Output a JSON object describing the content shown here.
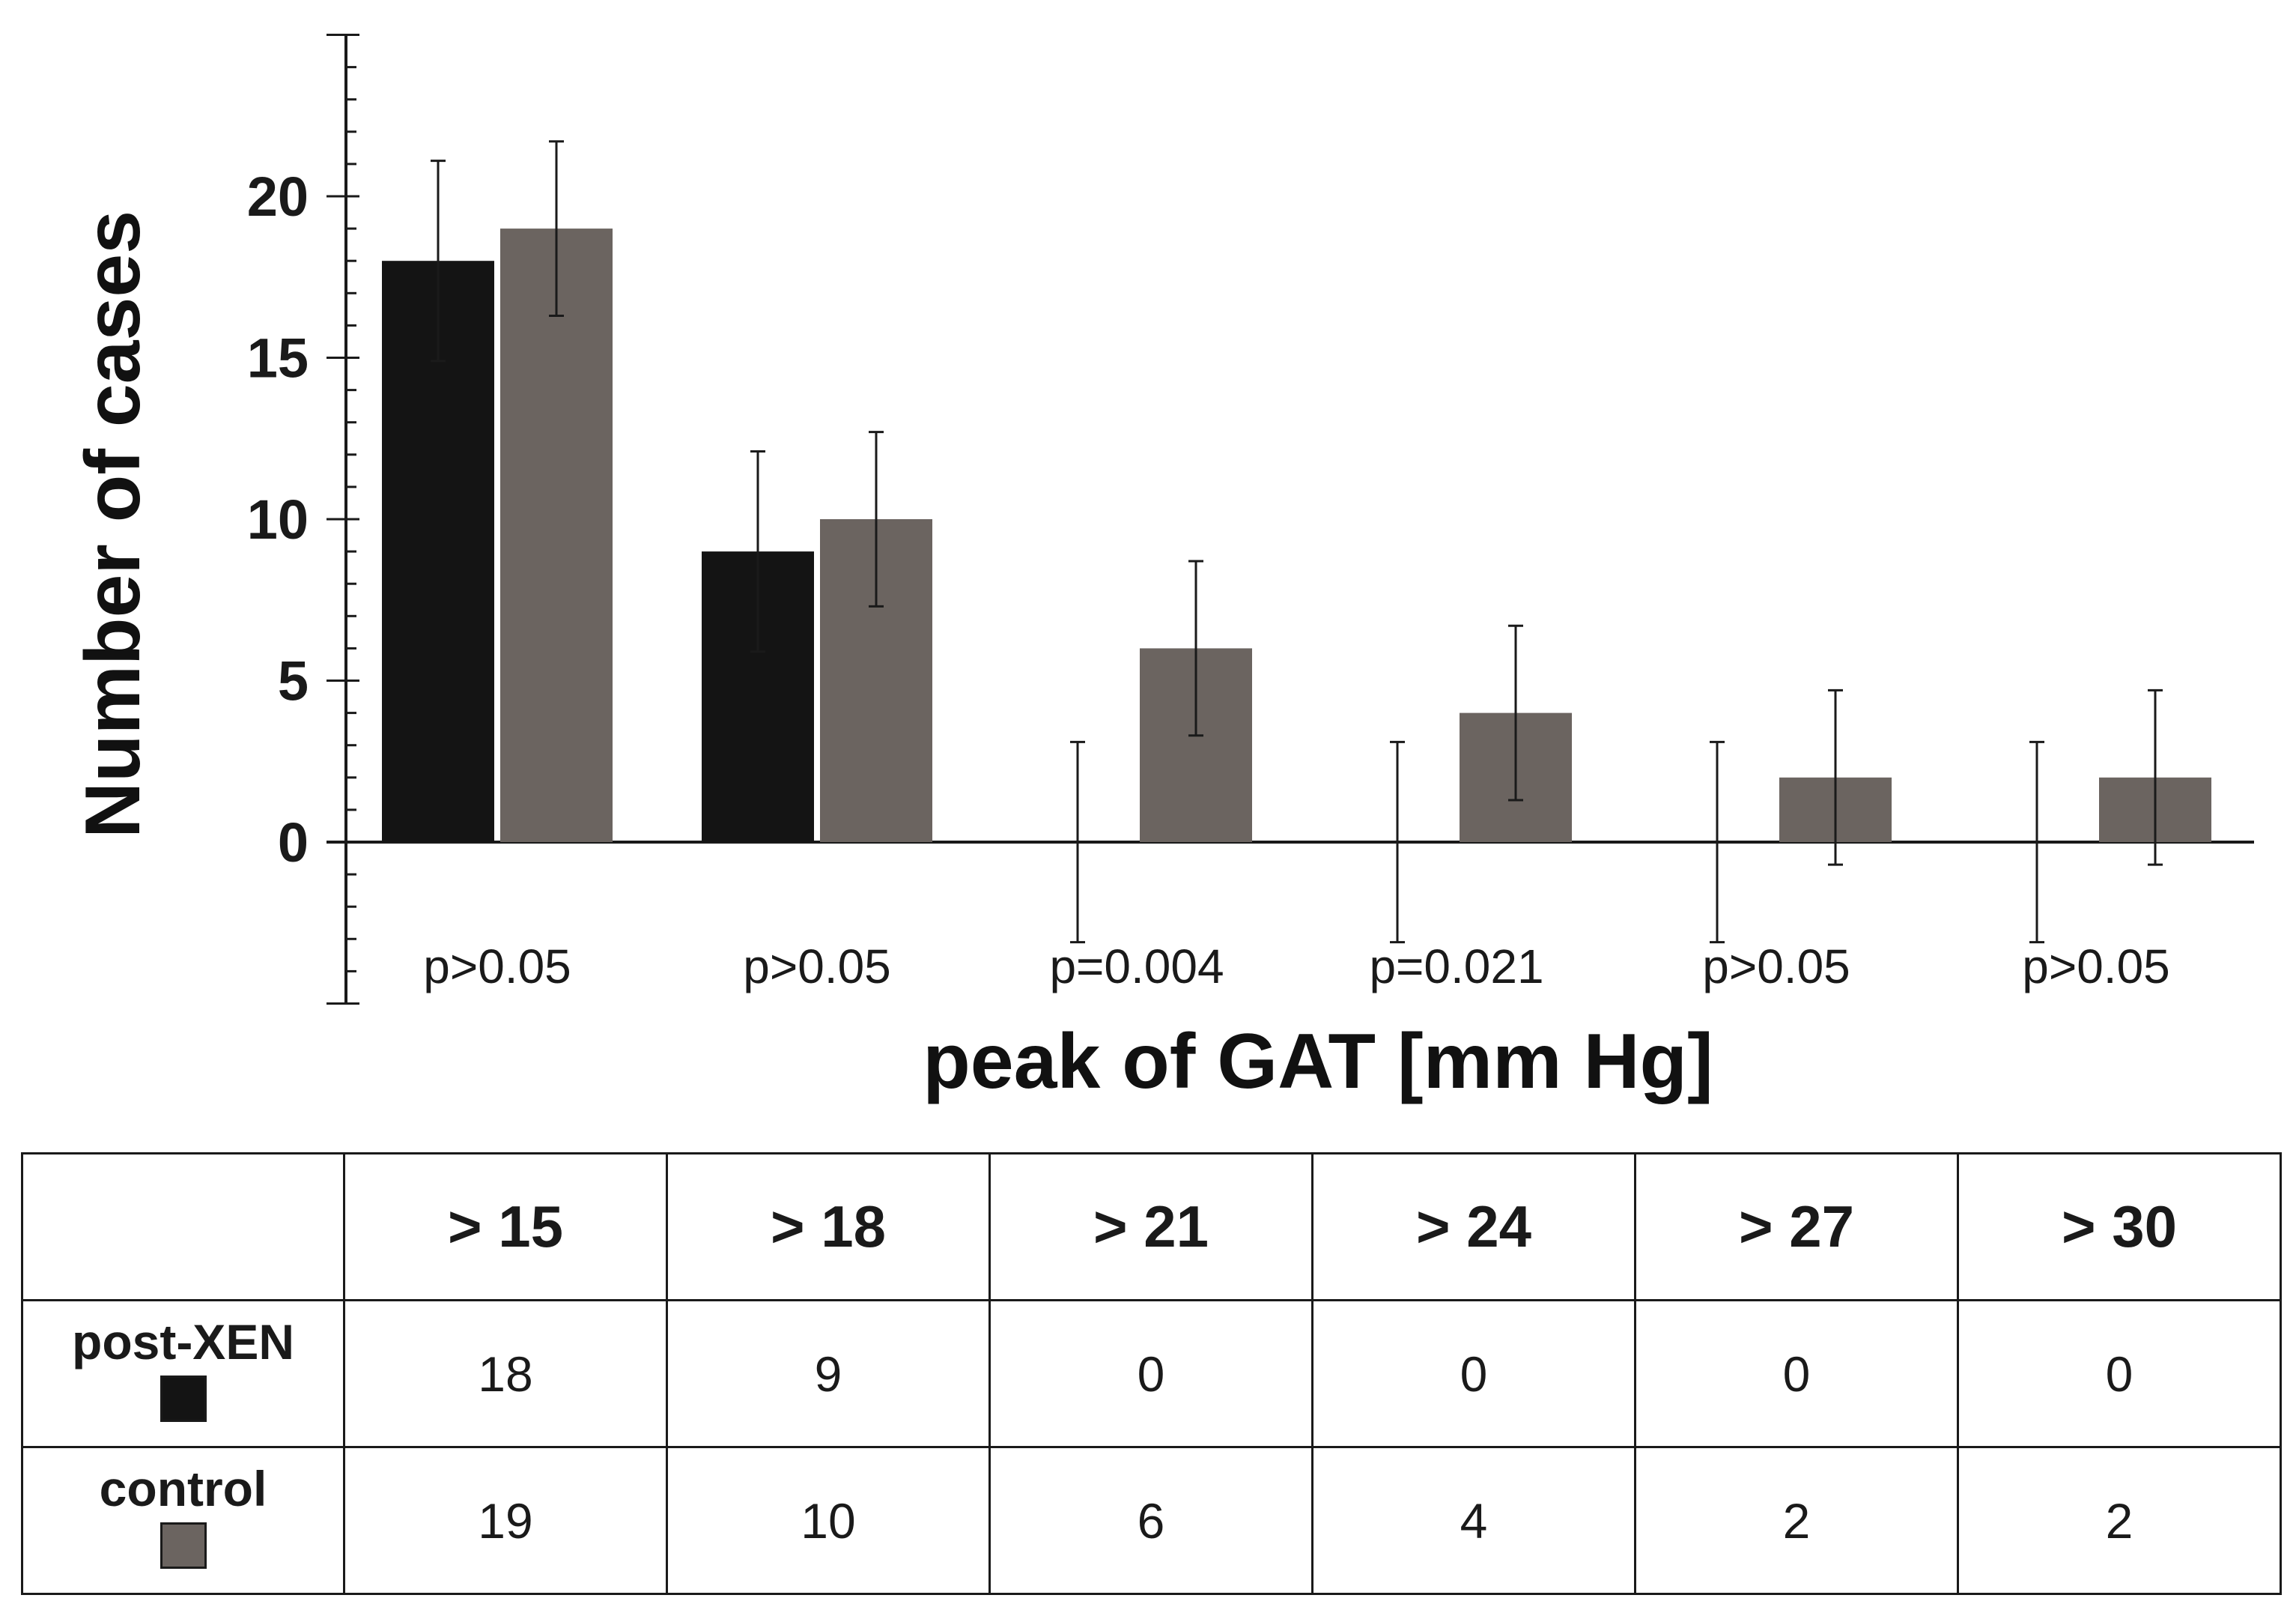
{
  "chart_data": {
    "type": "bar",
    "xlabel": "peak of GAT [mm Hg]",
    "ylabel": "Number of cases",
    "ylim": [
      -5,
      25
    ],
    "yticks": [
      "0",
      "5",
      "10",
      "15",
      "20"
    ],
    "categories": [
      "> 15",
      "> 18",
      "> 21",
      "> 24",
      "> 27",
      "> 30"
    ],
    "series": [
      {
        "name": "post-XEN",
        "color": "#141414",
        "values": [
          18,
          9,
          0,
          0,
          0,
          0
        ],
        "err": [
          3.1,
          3.1,
          3.1,
          3.1,
          3.1,
          3.1
        ]
      },
      {
        "name": "control",
        "color": "#6b6460",
        "values": [
          19,
          10,
          6,
          4,
          2,
          2
        ],
        "err": [
          2.7,
          2.7,
          2.7,
          2.7,
          2.7,
          2.7
        ]
      }
    ],
    "p_values": [
      "p>0.05",
      "p>0.05",
      "p=0.004",
      "p=0.021",
      "p>0.05",
      "p>0.05"
    ]
  },
  "table": {
    "headers": [
      "> 15",
      "> 18",
      "> 21",
      "> 24",
      "> 27",
      "> 30"
    ],
    "rows": [
      {
        "label": "post-XEN",
        "swatch_color": "#141414",
        "cells": [
          "18",
          "9",
          "0",
          "0",
          "0",
          "0"
        ]
      },
      {
        "label": "control",
        "swatch_color": "#6b6460",
        "cells": [
          "19",
          "10",
          "6",
          "4",
          "2",
          "2"
        ]
      }
    ]
  }
}
